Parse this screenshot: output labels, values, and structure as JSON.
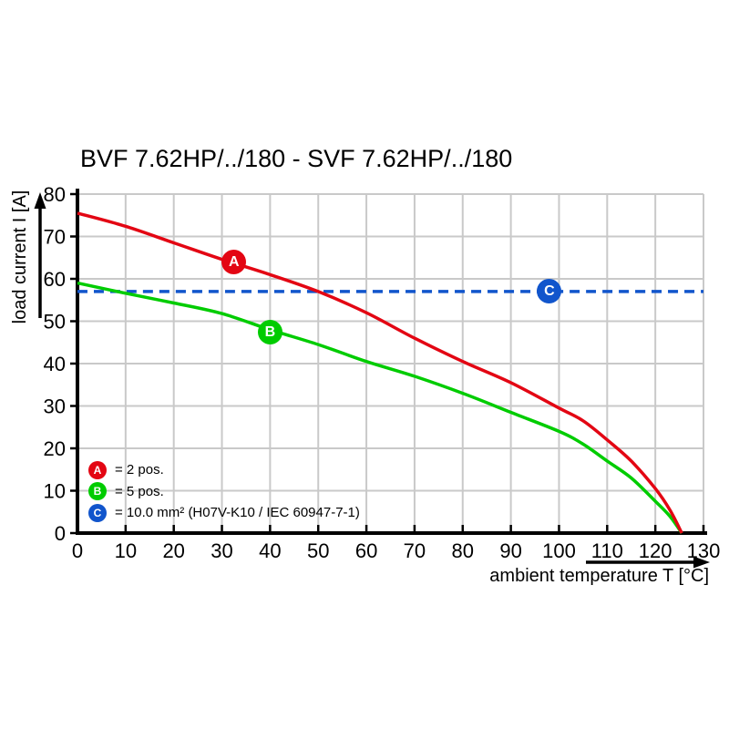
{
  "title": "BVF 7.62HP/../180 - SVF 7.62HP/../180",
  "chart_data": {
    "type": "line",
    "title": "BVF 7.62HP/../180 - SVF 7.62HP/../180",
    "xlabel": "ambient temperature T [°C]",
    "ylabel": "load current I [A]",
    "xlim": [
      0,
      130
    ],
    "ylim": [
      0,
      80
    ],
    "x_ticks": [
      0,
      10,
      20,
      30,
      40,
      50,
      60,
      70,
      80,
      90,
      100,
      110,
      120,
      130
    ],
    "y_ticks": [
      0,
      10,
      20,
      30,
      40,
      50,
      60,
      70,
      80
    ],
    "grid": true,
    "grid_color": "#c9c9c9",
    "legend_position": "inside bottom-left",
    "series": [
      {
        "name": "A",
        "label": "2 pos.",
        "color": "#e30613",
        "style": "solid",
        "points": [
          [
            0,
            75.5
          ],
          [
            10,
            72.4
          ],
          [
            20,
            68.5
          ],
          [
            30,
            64.6
          ],
          [
            40,
            61
          ],
          [
            50,
            57
          ],
          [
            60,
            52
          ],
          [
            70,
            46
          ],
          [
            80,
            40.5
          ],
          [
            90,
            35.5
          ],
          [
            100,
            29.5
          ],
          [
            105,
            26.5
          ],
          [
            110,
            22
          ],
          [
            115,
            17
          ],
          [
            120,
            10.5
          ],
          [
            123,
            5.5
          ],
          [
            125.5,
            0
          ]
        ]
      },
      {
        "name": "B",
        "label": "5 pos.",
        "color": "#00cc00",
        "style": "solid",
        "points": [
          [
            0,
            59
          ],
          [
            10,
            56.6
          ],
          [
            20,
            54.3
          ],
          [
            30,
            51.8
          ],
          [
            40,
            48
          ],
          [
            50,
            44.5
          ],
          [
            60,
            40.5
          ],
          [
            70,
            37
          ],
          [
            80,
            33
          ],
          [
            90,
            28.5
          ],
          [
            100,
            24
          ],
          [
            105,
            21
          ],
          [
            110,
            17
          ],
          [
            115,
            13
          ],
          [
            120,
            7.5
          ],
          [
            123,
            4
          ],
          [
            125.5,
            0
          ]
        ]
      },
      {
        "name": "C",
        "label": "10.0 mm² (H07V-K10 / IEC 60947-7-1)",
        "color": "#1155cc",
        "style": "dashed",
        "points": [
          [
            0,
            57
          ],
          [
            130,
            57
          ]
        ]
      }
    ],
    "markers": [
      {
        "letter": "A",
        "t": 32.5,
        "i": 64,
        "color": "#e30613"
      },
      {
        "letter": "B",
        "t": 40,
        "i": 47.5,
        "color": "#00cc00"
      },
      {
        "letter": "C",
        "t": 98,
        "i": 57,
        "color": "#1155cc"
      }
    ]
  },
  "legend": {
    "items": [
      {
        "letter": "A",
        "text": "= 2 pos.",
        "color": "#e30613"
      },
      {
        "letter": "B",
        "text": "= 5 pos.",
        "color": "#00cc00"
      },
      {
        "letter": "C",
        "text": "= 10.0 mm² (H07V-K10 / IEC 60947-7-1)",
        "color": "#1155cc"
      }
    ]
  }
}
